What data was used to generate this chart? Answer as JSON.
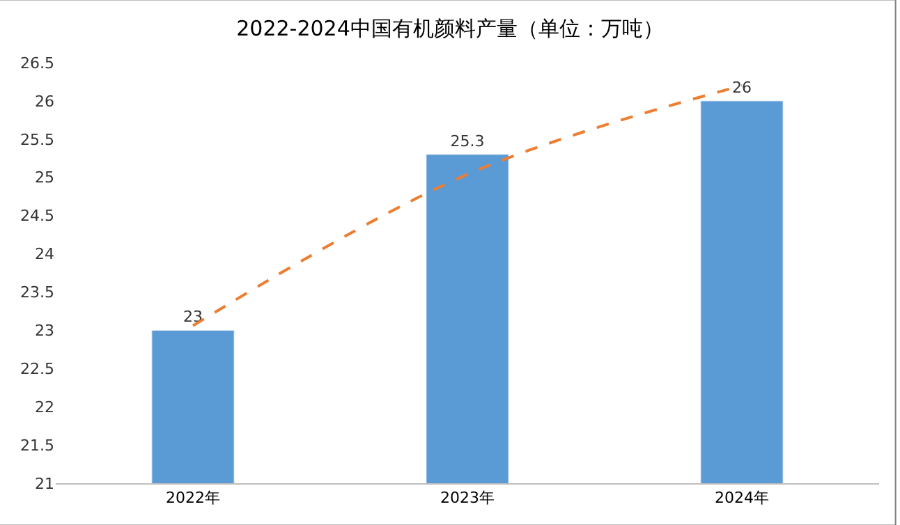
{
  "chart_data": {
    "type": "bar",
    "title": "2022-2024中国有机颜料产量（单位：万吨）",
    "categories": [
      "2022年",
      "2023年",
      "2024年"
    ],
    "series": [
      {
        "color": "#5b9bd5",
        "values": [
          23,
          25.3,
          26
        ],
        "value_labels": [
          "23",
          "25.3",
          "26"
        ]
      },
      {
        "type": "line",
        "color": "#ed7d31",
        "values": [
          23.06,
          25.04,
          26.2
        ],
        "line_style": "dashed",
        "marker": "none"
      }
    ],
    "ylim": [
      21,
      26.5
    ],
    "yticks": [
      21,
      21.5,
      22,
      22.5,
      23,
      23.5,
      24,
      24.5,
      25,
      25.5,
      26,
      26.5
    ],
    "grid": false
  }
}
